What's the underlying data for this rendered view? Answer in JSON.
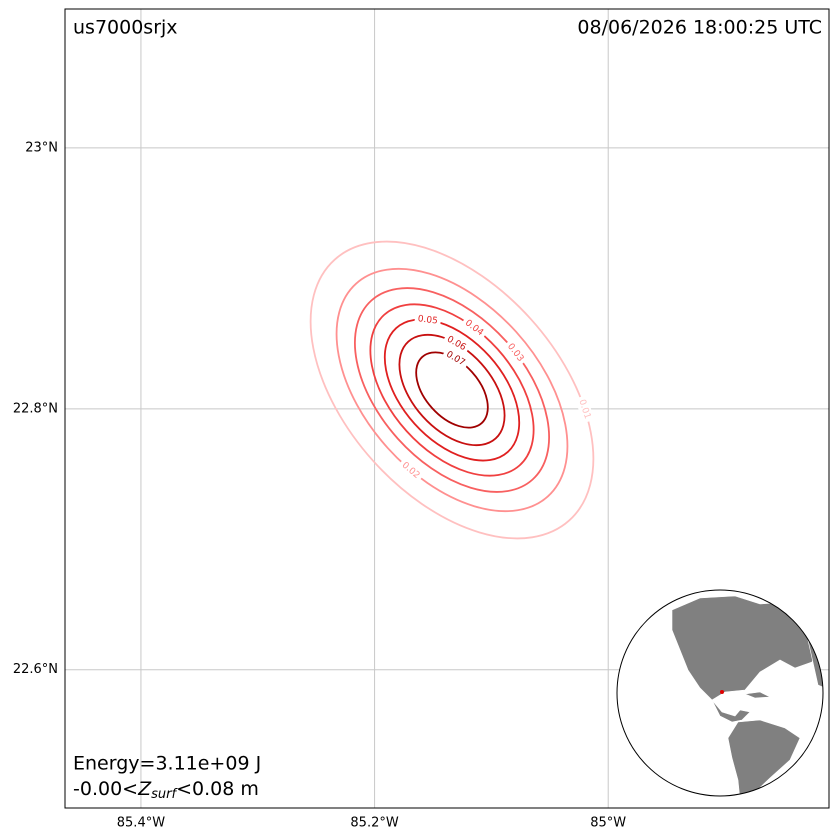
{
  "chart_data": {
    "type": "contour",
    "title": "us7000srjx",
    "timestamp": "08/06/2026 18:00:25 UTC",
    "energy": "Energy=3.11e+09 J",
    "zrange": {
      "lower": "-0.00<",
      "symbol": "Z",
      "subscript": "surf",
      "upper": "<0.08 m"
    },
    "xlim": [
      -85.465,
      -84.811
    ],
    "ylim": [
      22.494,
      23.1065
    ],
    "xticks": [
      {
        "value": -85.4,
        "label": "85.4°W"
      },
      {
        "value": -85.2,
        "label": "85.2°W"
      },
      {
        "value": -85,
        "label": "85°W"
      }
    ],
    "yticks": [
      {
        "value": 23,
        "label": "23°N"
      },
      {
        "value": 22.8,
        "label": "22.8°N"
      },
      {
        "value": 22.6,
        "label": "22.6°N"
      }
    ],
    "grid": true,
    "contours": [
      {
        "level": 0.01,
        "color": "#ffc0c0"
      },
      {
        "level": 0.02,
        "color": "#ff9090"
      },
      {
        "level": 0.03,
        "color": "#f86060"
      },
      {
        "level": 0.04,
        "color": "#f04040"
      },
      {
        "level": 0.05,
        "color": "#e02020"
      },
      {
        "level": 0.06,
        "color": "#c81010"
      },
      {
        "level": 0.07,
        "color": "#a00000"
      }
    ]
  }
}
